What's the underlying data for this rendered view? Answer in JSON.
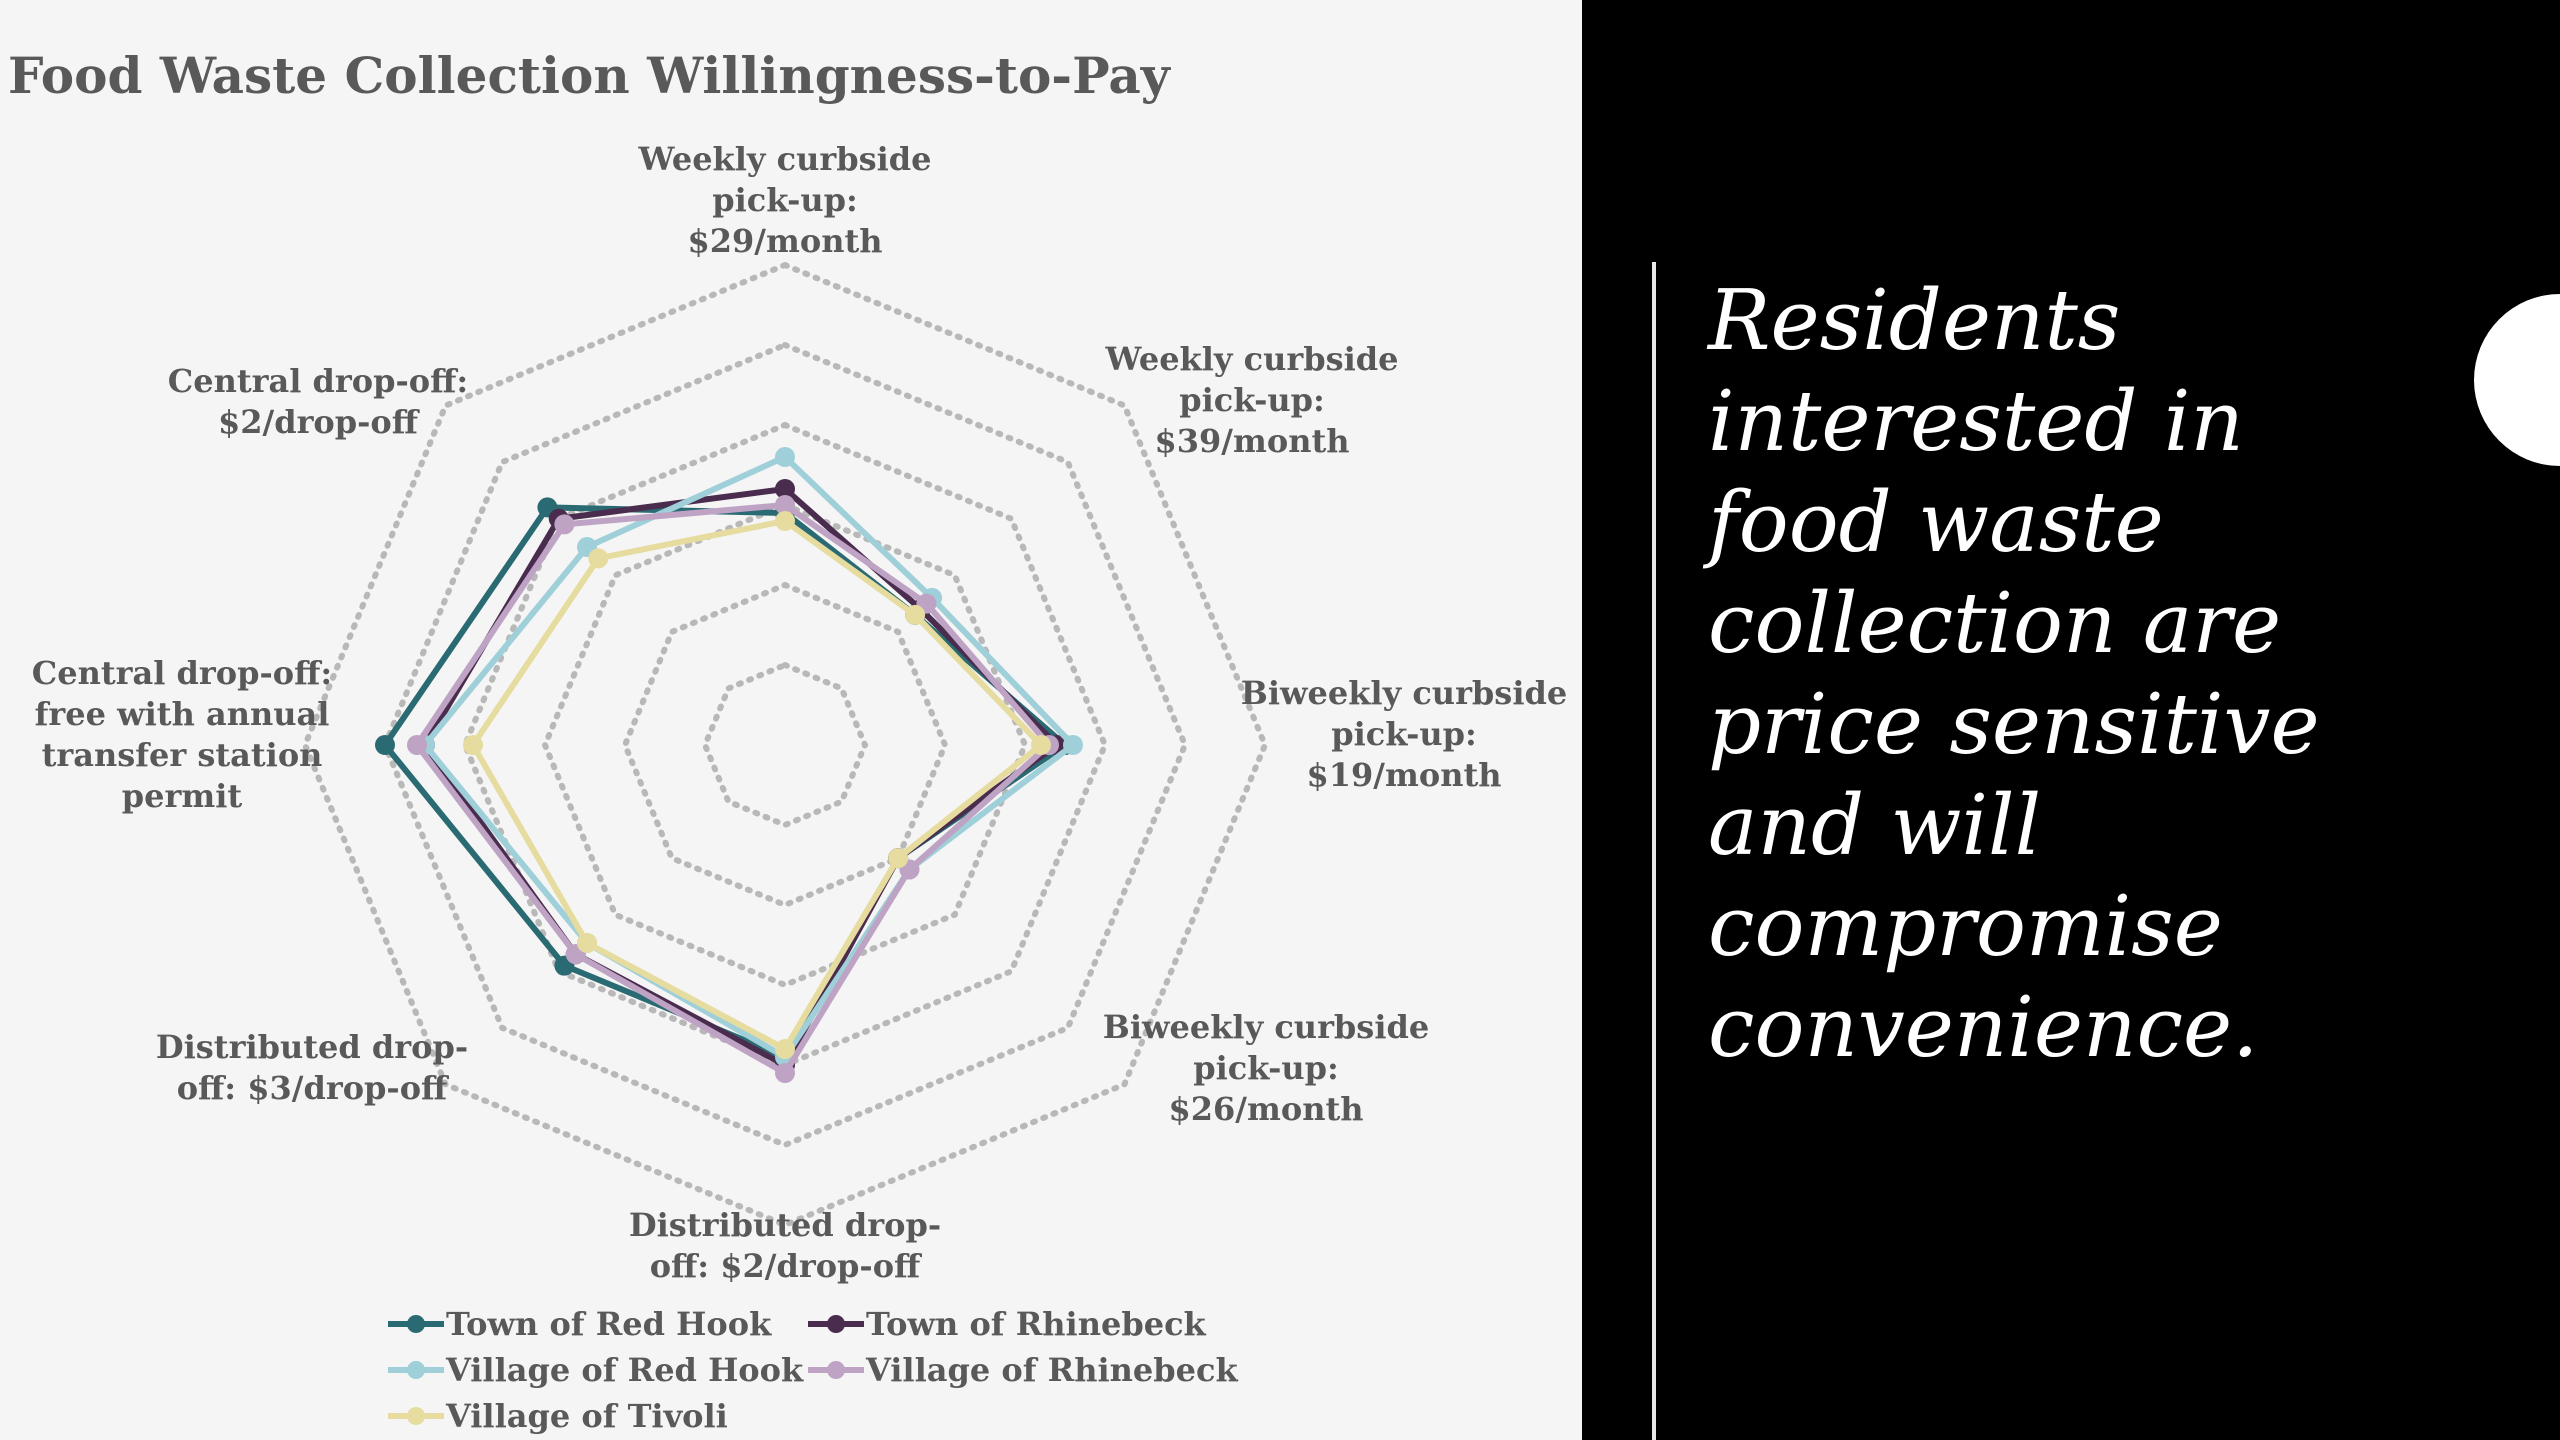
{
  "chart_data": {
    "type": "radar",
    "title": "Food Waste Collection Willingness-to-Pay",
    "categories": [
      [
        "Weekly curbside",
        "pick-up:",
        "$29/month"
      ],
      [
        "Weekly curbside",
        "pick-up:",
        "$39/month"
      ],
      [
        "Biweekly curbside",
        "pick-up:",
        "$19/month"
      ],
      [
        "Biweekly curbside",
        "pick-up:",
        "$26/month"
      ],
      [
        "Distributed drop-",
        "off: $2/drop-off"
      ],
      [
        "Distributed drop-",
        "off: $3/drop-off"
      ],
      [
        "Central drop-off:",
        "free with annual",
        "transfer station",
        "permit"
      ],
      [
        "Central drop-off:",
        "$2/drop-off"
      ]
    ],
    "rlim": [
      0,
      6
    ],
    "gridlines": true,
    "legend_position": "bottom",
    "series": [
      {
        "name": "Town of Red Hook",
        "color": "#2a6b73",
        "values": [
          2.9,
          2.3,
          3.5,
          2.0,
          3.9,
          3.9,
          5.0,
          4.2
        ]
      },
      {
        "name": "Town of Rhinebeck",
        "color": "#4a2c4e",
        "values": [
          3.2,
          2.4,
          3.4,
          2.0,
          4.0,
          3.7,
          4.5,
          4.0
        ]
      },
      {
        "name": "Village of Red Hook",
        "color": "#9fcfd8",
        "values": [
          3.6,
          2.6,
          3.6,
          2.2,
          3.9,
          3.5,
          4.5,
          3.5
        ]
      },
      {
        "name": "Village of Rhinebeck",
        "color": "#bfa3c4",
        "values": [
          3.0,
          2.5,
          3.3,
          2.2,
          4.1,
          3.7,
          4.6,
          3.9
        ]
      },
      {
        "name": "Village of Tivoli",
        "color": "#e6dca0",
        "values": [
          2.8,
          2.3,
          3.2,
          2.0,
          3.8,
          3.5,
          3.9,
          3.3
        ]
      }
    ]
  },
  "quote": {
    "lines": [
      "Residents",
      "interested in",
      "food waste",
      "collection are",
      "price sensitive",
      "and will",
      "compromise",
      "convenience."
    ]
  }
}
